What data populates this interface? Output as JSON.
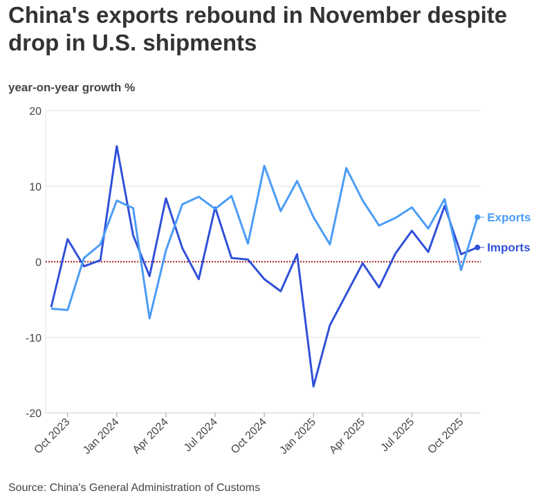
{
  "chart_data": {
    "type": "line",
    "title": "China's exports rebound in November despite drop in U.S. shipments",
    "ylabel": "year-on-year growth %",
    "source": "Source: China's General Administration of Customs",
    "ylim": [
      -20,
      20
    ],
    "yticks": [
      20,
      10,
      0,
      -10,
      -20
    ],
    "ytick_labels": [
      "20",
      "10",
      "0",
      "-10",
      "-20"
    ],
    "x": [
      "Sep 2023",
      "Oct 2023",
      "Nov 2023",
      "Dec 2023",
      "Jan 2024",
      "Feb 2024",
      "Mar 2024",
      "Apr 2024",
      "May 2024",
      "Jun 2024",
      "Jul 2024",
      "Aug 2024",
      "Sep 2024",
      "Oct 2024",
      "Nov 2024",
      "Dec 2024",
      "Jan 2025",
      "Feb 2025",
      "Mar 2025",
      "Apr 2025",
      "May 2025",
      "Jun 2025",
      "Jul 2025",
      "Aug 2025",
      "Sep 2025",
      "Oct 2025",
      "Nov 2025"
    ],
    "xtick_labels": [
      {
        "label": "Oct 2023",
        "index": 1
      },
      {
        "label": "Jan 2024",
        "index": 4
      },
      {
        "label": "Apr 2024",
        "index": 7
      },
      {
        "label": "Jul 2024",
        "index": 10
      },
      {
        "label": "Oct 2024",
        "index": 13
      },
      {
        "label": "Jan 2025",
        "index": 16
      },
      {
        "label": "Apr 2025",
        "index": 19
      },
      {
        "label": "Jul 2025",
        "index": 22
      },
      {
        "label": "Oct 2025",
        "index": 25
      }
    ],
    "series": [
      {
        "name": "Exports",
        "color": "#4a9cf6",
        "values": [
          -6.2,
          -6.4,
          0.5,
          2.3,
          8.1,
          7.1,
          -7.5,
          1.5,
          7.6,
          8.6,
          7.0,
          8.7,
          2.4,
          12.7,
          6.7,
          10.7,
          5.9,
          2.3,
          12.4,
          8.1,
          4.8,
          5.8,
          7.2,
          4.4,
          8.3,
          -1.1,
          5.9
        ]
      },
      {
        "name": "Imports",
        "color": "#3050d8",
        "values": [
          -6.0,
          3.0,
          -0.6,
          0.2,
          15.3,
          3.5,
          -1.9,
          8.4,
          1.8,
          -2.3,
          7.2,
          0.5,
          0.3,
          -2.3,
          -3.9,
          1.0,
          -16.5,
          -8.4,
          -4.3,
          -0.2,
          -3.4,
          1.1,
          4.1,
          1.3,
          7.4,
          1.0,
          1.9
        ]
      }
    ],
    "zero_line_color": "#a31515",
    "grid": true,
    "legend": "end-of-line labels, right"
  }
}
